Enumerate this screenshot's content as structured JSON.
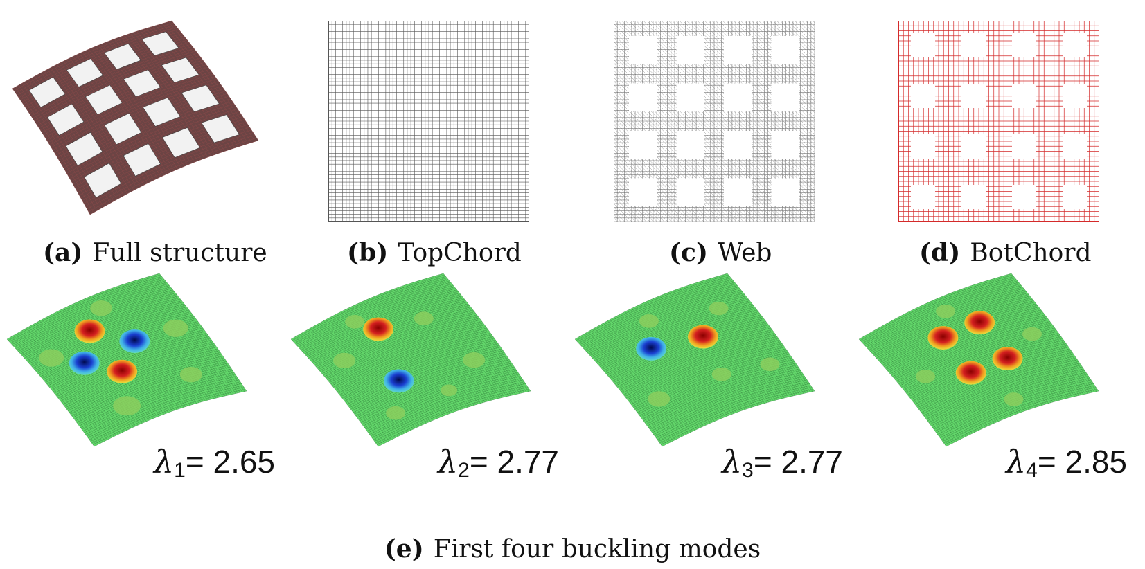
{
  "captions": {
    "a": {
      "tag": "(a)",
      "text": "Full structure"
    },
    "b": {
      "tag": "(b)",
      "text": "TopChord"
    },
    "c": {
      "tag": "(c)",
      "text": "Web"
    },
    "d": {
      "tag": "(d)",
      "text": "BotChord"
    },
    "e": {
      "tag": "(e)",
      "text": "First four buckling modes"
    }
  },
  "modes": [
    {
      "symbol": "λ",
      "index": "1",
      "value": "= 2.65"
    },
    {
      "symbol": "λ",
      "index": "2",
      "value": "= 2.77"
    },
    {
      "symbol": "λ",
      "index": "3",
      "value": "= 2.77"
    },
    {
      "symbol": "λ",
      "index": "4",
      "value": "= 2.85"
    }
  ],
  "colors": {
    "top_chord_mesh": "#555555",
    "web_mesh": "#777777",
    "bot_chord_mesh": "#d42a2a",
    "full_structure_mesh": "#8a4a4a",
    "mode_surface": "#62d66a",
    "mode_peak": "#d42020",
    "mode_trough": "#1a3fd0"
  }
}
